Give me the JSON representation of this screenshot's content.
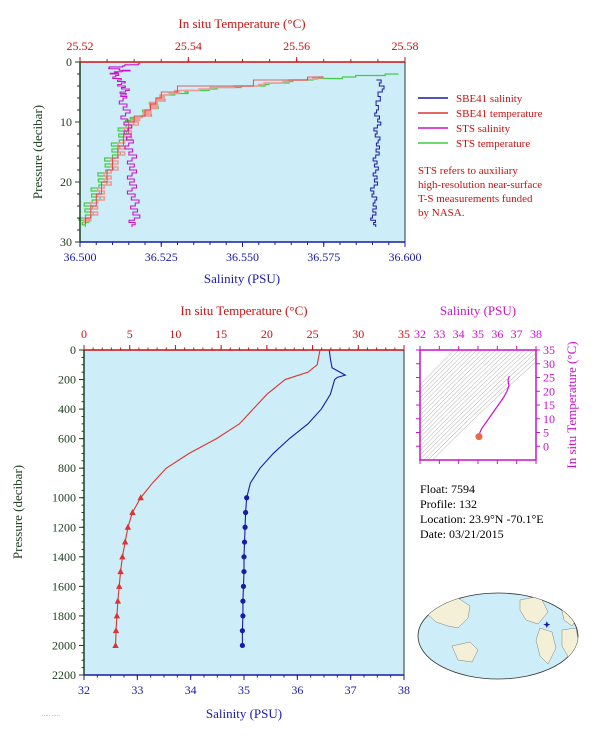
{
  "colors": {
    "panel_bg": "#cdeef8",
    "salinity_axis": "#1a1aa8",
    "temperature_axis": "#cc1111",
    "pressure_axis": "#1e4020",
    "sts_salinity": "#cc11cc",
    "sts_temperature": "#44cc44",
    "sbe_salinity": "#1a1aa8",
    "sbe_temperature": "#dd3333",
    "ts_axis": "#cc11cc"
  },
  "chart_data": [
    {
      "id": "near-surface",
      "type": "line",
      "top_axis_label": "In situ Temperature (°C)",
      "bottom_axis_label": "Salinity (PSU)",
      "left_axis_label": "Pressure (decibar)",
      "temp_range": [
        25.52,
        25.58
      ],
      "sal_range": [
        36.5,
        36.6
      ],
      "pres_range": [
        0,
        30
      ],
      "temp_ticks": [
        "25.52",
        "25.54",
        "25.56",
        "25.58"
      ],
      "sal_ticks": [
        "36.500",
        "36.525",
        "36.550",
        "36.575",
        "36.600"
      ],
      "pres_ticks": [
        "0",
        "10",
        "20",
        "30"
      ],
      "legend": [
        {
          "label": "SBE41 salinity",
          "color_key": "sbe_salinity"
        },
        {
          "label": "SBE41 temperature",
          "color_key": "sbe_temperature"
        },
        {
          "label": "STS salinity",
          "color_key": "sts_salinity"
        },
        {
          "label": "STS temperature",
          "color_key": "sts_temperature"
        }
      ],
      "note": [
        "STS refers to auxiliary",
        "high-resolution near-surface",
        "T-S measurements funded",
        "by NASA."
      ],
      "sbe_salinity": {
        "p": [
          3,
          5,
          8,
          10,
          12,
          14,
          16,
          18,
          20,
          22,
          24,
          26,
          27.5
        ],
        "s": [
          36.592,
          36.593,
          36.591,
          36.592,
          36.591,
          36.592,
          36.591,
          36.591,
          36.591,
          36.59,
          36.591,
          36.59,
          36.591
        ]
      },
      "sbe_temperature": {
        "p": [
          2.5,
          3,
          4,
          5,
          6,
          7,
          8,
          9,
          10,
          12,
          14,
          16,
          18,
          20,
          22,
          24,
          26,
          27
        ],
        "t": [
          25.565,
          25.562,
          25.552,
          25.538,
          25.535,
          25.534,
          25.533,
          25.532,
          25.53,
          25.529,
          25.528,
          25.527,
          25.526,
          25.525,
          25.524,
          25.523,
          25.522,
          25.521
        ]
      },
      "sts_salinity": {
        "p": [
          0.3,
          1,
          1.5,
          2,
          3,
          4,
          5,
          6,
          8,
          10,
          12,
          14,
          16,
          18,
          20,
          22,
          24,
          26,
          27.5
        ],
        "s": [
          36.52,
          36.509,
          36.514,
          36.51,
          36.512,
          36.513,
          36.514,
          36.513,
          36.514,
          36.514,
          36.515,
          36.515,
          36.516,
          36.516,
          36.516,
          36.516,
          36.517,
          36.517,
          36.516
        ]
      },
      "sts_temperature": {
        "p": [
          2,
          3,
          4,
          5,
          6,
          7,
          8,
          9,
          10,
          12,
          14,
          16,
          18,
          20,
          22,
          24,
          26,
          27.5
        ],
        "t": [
          25.58,
          25.563,
          25.553,
          25.54,
          25.535,
          25.534,
          25.533,
          25.532,
          25.529,
          25.528,
          25.527,
          25.526,
          25.525,
          25.524,
          25.523,
          25.522,
          25.521,
          25.521
        ]
      }
    },
    {
      "id": "full-profile",
      "type": "line",
      "top_axis_label": "In situ Temperature (°C)",
      "bottom_axis_label": "Salinity (PSU)",
      "left_axis_label": "Pressure (decibar)",
      "temp_range": [
        0,
        35
      ],
      "sal_range": [
        32,
        38
      ],
      "pres_range": [
        0,
        2200
      ],
      "temp_ticks": [
        "0",
        "5",
        "10",
        "15",
        "20",
        "25",
        "30",
        "35"
      ],
      "sal_ticks": [
        "32",
        "33",
        "34",
        "35",
        "36",
        "37",
        "38"
      ],
      "pres_ticks": [
        "0",
        "200",
        "400",
        "600",
        "800",
        "1000",
        "1200",
        "1400",
        "1600",
        "1800",
        "2000",
        "2200"
      ],
      "salinity": {
        "p": [
          5,
          60,
          120,
          170,
          185,
          200,
          300,
          400,
          500,
          600,
          700,
          800,
          900,
          1000,
          1100,
          1200,
          1300,
          1400,
          1500,
          1600,
          1700,
          1800,
          1900,
          2000
        ],
        "s": [
          36.6,
          36.62,
          36.65,
          36.9,
          36.75,
          36.7,
          36.62,
          36.45,
          36.2,
          35.85,
          35.55,
          35.3,
          35.12,
          35.05,
          35.03,
          35.02,
          35.01,
          35.0,
          35.0,
          34.99,
          34.98,
          34.98,
          34.97,
          34.97
        ]
      },
      "temperature": {
        "p": [
          5,
          100,
          150,
          200,
          300,
          400,
          500,
          600,
          700,
          800,
          900,
          1000,
          1100,
          1200,
          1300,
          1400,
          1500,
          1600,
          1700,
          1800,
          1900,
          2000
        ],
        "t": [
          25.8,
          25.5,
          24.5,
          22.0,
          20.0,
          18.5,
          17.0,
          14.5,
          11.5,
          9.0,
          7.5,
          6.2,
          5.3,
          4.8,
          4.5,
          4.2,
          4.0,
          3.85,
          3.7,
          3.6,
          3.5,
          3.45
        ]
      }
    },
    {
      "id": "ts-diagram",
      "type": "scatter",
      "top_axis_label": "Salinity (PSU)",
      "right_axis_label": "In situ Temperature (°C)",
      "sal_range": [
        32,
        38
      ],
      "temp_range": [
        -5,
        35
      ],
      "sal_ticks": [
        "32",
        "33",
        "34",
        "35",
        "36",
        "37",
        "38"
      ],
      "temp_ticks": [
        "0",
        "5",
        "10",
        "15",
        "20",
        "25",
        "30",
        "35"
      ],
      "profile": {
        "s": [
          35.05,
          35.1,
          35.2,
          35.4,
          35.6,
          35.8,
          36.1,
          36.3,
          36.5,
          36.6,
          36.55,
          36.62
        ],
        "t": [
          3.5,
          5,
          6.5,
          8.5,
          10.5,
          12.5,
          15.5,
          17.5,
          20,
          22,
          24,
          25.5
        ]
      }
    }
  ],
  "float_info": {
    "float": "Float:  7594",
    "profile": "Profile:  132",
    "location": "Location:  23.9°N  -70.1°E",
    "date": "Date:  03/21/2015"
  },
  "map": {
    "marker_lon": -70.1,
    "marker_lat": 23.9
  }
}
